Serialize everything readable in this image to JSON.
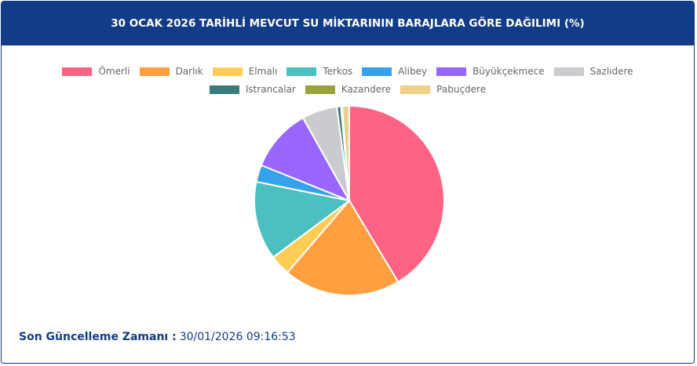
{
  "chart_data": {
    "type": "pie",
    "title": "30 OCAK 2026 TARİHLİ MEVCUT SU MİKTARININ BARAJLARA GÖRE DAĞILIMI (%)",
    "categories": [
      "Ömerli",
      "Darlık",
      "Elmalı",
      "Terkos",
      "Alibey",
      "Büyükçekmece",
      "Sazlıdere",
      "Istrancalar",
      "Kazandere",
      "Pabuçdere"
    ],
    "values": [
      41.4,
      19.9,
      3.5,
      13.4,
      2.9,
      10.8,
      6.0,
      0.7,
      0.2,
      1.2
    ],
    "colors": [
      "#ff6384",
      "#ff9f40",
      "#ffcd56",
      "#4bc0c0",
      "#36a2eb",
      "#9966ff",
      "#c9cbcf",
      "#3b7b7b",
      "#9aa23a",
      "#f0d08a"
    ]
  },
  "footer": {
    "label": "Son Güncelleme Zamanı :",
    "value": "30/01/2026 09:16:53"
  }
}
